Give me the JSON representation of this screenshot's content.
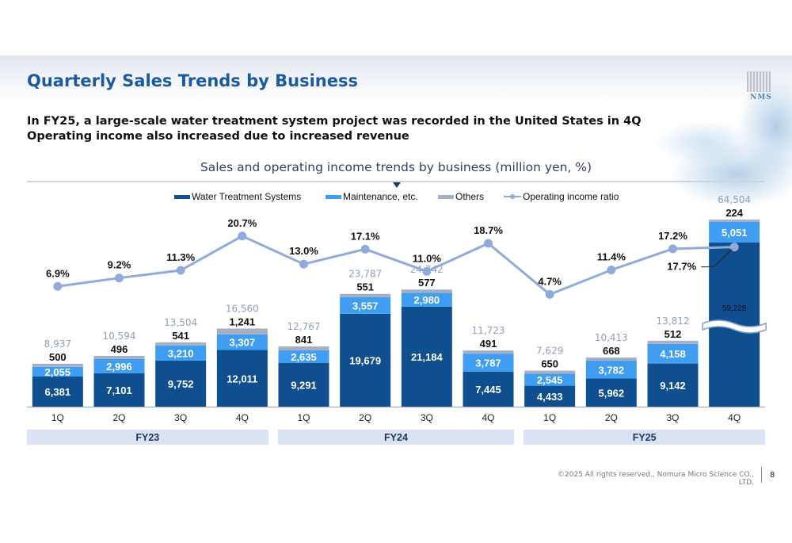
{
  "slide": {
    "title": "Quarterly Sales Trends by Business",
    "headline_lines": [
      "In FY25, a large-scale water treatment system project was recorded in the United States in 4Q",
      "Operating income also increased due to increased revenue"
    ],
    "logo_text": "NMS",
    "footer": "©2025 All rights reserved., Nomura Micro Science CO., LTD.",
    "page_number": "8"
  },
  "colors": {
    "title": "#1a5aa0",
    "water_treatment": "#0f4f8f",
    "maintenance": "#3f9ef2",
    "others": "#a6b0c3",
    "ratio_line": "#8faadc",
    "total_label": "#8ea0bd",
    "fiscal_band": "#dae3f3"
  },
  "chart_data": {
    "type": "bar",
    "stacked": true,
    "title": "Sales and operating income trends by business (million yen, %)",
    "categories": [
      "1Q",
      "2Q",
      "3Q",
      "4Q",
      "1Q",
      "2Q",
      "3Q",
      "4Q",
      "1Q",
      "2Q",
      "3Q",
      "4Q"
    ],
    "fiscal_years": [
      {
        "label": "FY23",
        "quarters": [
          0,
          1,
          2,
          3
        ]
      },
      {
        "label": "FY24",
        "quarters": [
          4,
          5,
          6,
          7
        ]
      },
      {
        "label": "FY25",
        "quarters": [
          8,
          9,
          10,
          11
        ]
      }
    ],
    "series": [
      {
        "name": "Water Treatment Systems",
        "values": [
          6381,
          7101,
          9752,
          12011,
          9291,
          19679,
          21184,
          7445,
          4433,
          5962,
          9142,
          59228
        ]
      },
      {
        "name": "Maintenance, etc.",
        "values": [
          2055,
          2996,
          3210,
          3307,
          2635,
          3557,
          2980,
          3787,
          2545,
          3782,
          4158,
          5051
        ]
      },
      {
        "name": "Others",
        "values": [
          500,
          496,
          541,
          1241,
          841,
          551,
          577,
          491,
          650,
          668,
          512,
          224
        ]
      }
    ],
    "totals": [
      8937,
      10594,
      13504,
      16560,
      12767,
      23787,
      24742,
      11723,
      7629,
      10413,
      13812,
      64504
    ],
    "line_series": {
      "name": "Operating income ratio",
      "unit": "%",
      "values": [
        6.9,
        9.2,
        11.3,
        20.7,
        13.0,
        17.1,
        11.0,
        18.7,
        4.7,
        11.4,
        17.2,
        17.7
      ]
    },
    "axis_break": {
      "category_index": 11,
      "note": "bar truncated with wave break"
    },
    "legend": {
      "position": "top",
      "entries": [
        "Water Treatment Systems",
        "Maintenance, etc.",
        "Others",
        "Operating income ratio"
      ]
    },
    "xlabel": "",
    "ylabel": "",
    "grid": false
  }
}
